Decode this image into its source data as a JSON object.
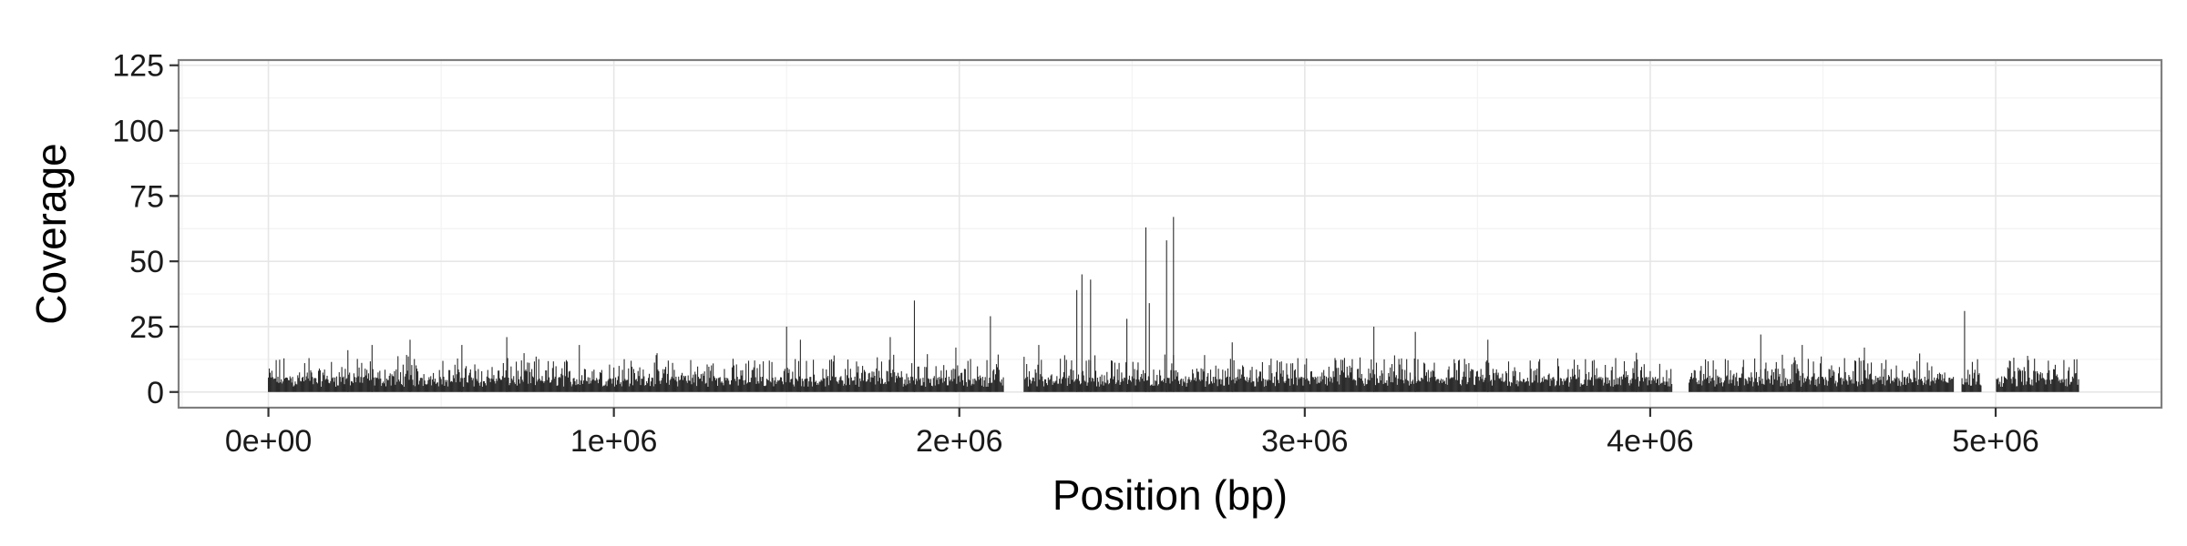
{
  "chart_data": {
    "type": "bar",
    "title": "",
    "xlabel": "Position (bp)",
    "ylabel": "Coverage",
    "xlim": [
      -260000,
      5480000
    ],
    "ylim": [
      -6,
      127
    ],
    "x_ticks": [
      0,
      1000000,
      2000000,
      3000000,
      4000000,
      5000000
    ],
    "x_tick_labels": [
      "0e+00",
      "1e+06",
      "2e+06",
      "3e+06",
      "4e+06",
      "5e+06"
    ],
    "y_ticks": [
      0,
      25,
      50,
      75,
      100,
      125
    ],
    "y_tick_labels": [
      "0",
      "25",
      "50",
      "75",
      "100",
      "125"
    ],
    "grid": true,
    "legend": "none",
    "bar_color": "#2b2b2b",
    "genome_range": [
      0,
      5240000
    ],
    "coverage_gaps": [
      [
        2130000,
        2185000
      ],
      [
        4065000,
        4110000
      ],
      [
        4880000,
        4900000
      ],
      [
        4960000,
        5000000
      ]
    ],
    "peaks": [
      {
        "x": 230000,
        "y": 16
      },
      {
        "x": 300000,
        "y": 18
      },
      {
        "x": 410000,
        "y": 20
      },
      {
        "x": 560000,
        "y": 18
      },
      {
        "x": 690000,
        "y": 21
      },
      {
        "x": 900000,
        "y": 18
      },
      {
        "x": 1500000,
        "y": 25
      },
      {
        "x": 1540000,
        "y": 20
      },
      {
        "x": 1800000,
        "y": 21
      },
      {
        "x": 1870000,
        "y": 35
      },
      {
        "x": 1990000,
        "y": 17
      },
      {
        "x": 2090000,
        "y": 29
      },
      {
        "x": 2230000,
        "y": 18
      },
      {
        "x": 2340000,
        "y": 39
      },
      {
        "x": 2355000,
        "y": 45
      },
      {
        "x": 2380000,
        "y": 43
      },
      {
        "x": 2485000,
        "y": 28
      },
      {
        "x": 2540000,
        "y": 63
      },
      {
        "x": 2550000,
        "y": 34
      },
      {
        "x": 2600000,
        "y": 58
      },
      {
        "x": 2620000,
        "y": 67
      },
      {
        "x": 2790000,
        "y": 19
      },
      {
        "x": 3200000,
        "y": 25
      },
      {
        "x": 3320000,
        "y": 23
      },
      {
        "x": 3530000,
        "y": 20
      },
      {
        "x": 3960000,
        "y": 15
      },
      {
        "x": 4320000,
        "y": 22
      },
      {
        "x": 4440000,
        "y": 18
      },
      {
        "x": 4620000,
        "y": 17
      },
      {
        "x": 4910000,
        "y": 31
      }
    ]
  }
}
